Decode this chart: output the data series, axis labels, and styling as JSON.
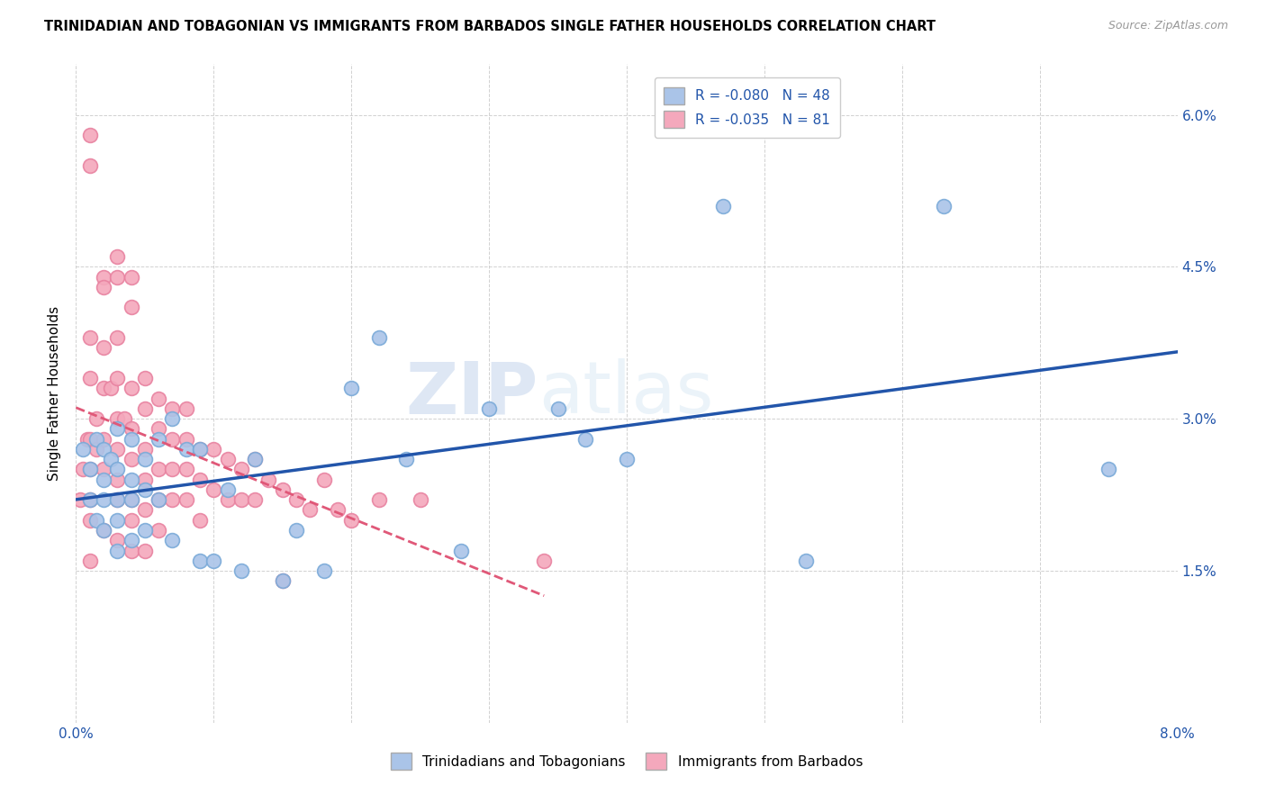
{
  "title": "TRINIDADIAN AND TOBAGONIAN VS IMMIGRANTS FROM BARBADOS SINGLE FATHER HOUSEHOLDS CORRELATION CHART",
  "source": "Source: ZipAtlas.com",
  "xlabel_blue": "Trinidadians and Tobagonians",
  "xlabel_pink": "Immigrants from Barbados",
  "ylabel": "Single Father Households",
  "xlim": [
    0.0,
    0.08
  ],
  "ylim": [
    0.0,
    0.065
  ],
  "xticks": [
    0.0,
    0.01,
    0.02,
    0.03,
    0.04,
    0.05,
    0.06,
    0.07,
    0.08
  ],
  "yticks": [
    0.0,
    0.015,
    0.03,
    0.045,
    0.06
  ],
  "legend_blue_r": "R = -0.080",
  "legend_blue_n": "N = 48",
  "legend_pink_r": "R = -0.035",
  "legend_pink_n": "N = 81",
  "blue_color": "#aac4e8",
  "pink_color": "#f4a8bc",
  "blue_edge_color": "#7aaad8",
  "pink_edge_color": "#e882a0",
  "blue_line_color": "#2255aa",
  "pink_line_color": "#e05878",
  "background_color": "#ffffff",
  "grid_color": "#cccccc",
  "watermark_zip": "ZIP",
  "watermark_atlas": "atlas",
  "blue_x": [
    0.0005,
    0.001,
    0.001,
    0.0015,
    0.0015,
    0.002,
    0.002,
    0.002,
    0.002,
    0.0025,
    0.003,
    0.003,
    0.003,
    0.003,
    0.003,
    0.004,
    0.004,
    0.004,
    0.004,
    0.005,
    0.005,
    0.005,
    0.006,
    0.006,
    0.007,
    0.007,
    0.008,
    0.009,
    0.009,
    0.01,
    0.011,
    0.012,
    0.013,
    0.015,
    0.016,
    0.018,
    0.02,
    0.022,
    0.024,
    0.028,
    0.03,
    0.035,
    0.037,
    0.04,
    0.047,
    0.053,
    0.063,
    0.075
  ],
  "blue_y": [
    0.027,
    0.025,
    0.022,
    0.028,
    0.02,
    0.027,
    0.024,
    0.022,
    0.019,
    0.026,
    0.029,
    0.025,
    0.022,
    0.02,
    0.017,
    0.028,
    0.024,
    0.022,
    0.018,
    0.026,
    0.023,
    0.019,
    0.028,
    0.022,
    0.03,
    0.018,
    0.027,
    0.027,
    0.016,
    0.016,
    0.023,
    0.015,
    0.026,
    0.014,
    0.019,
    0.015,
    0.033,
    0.038,
    0.026,
    0.017,
    0.031,
    0.031,
    0.028,
    0.026,
    0.051,
    0.016,
    0.051,
    0.025
  ],
  "pink_x": [
    0.0003,
    0.0005,
    0.0008,
    0.001,
    0.001,
    0.001,
    0.001,
    0.001,
    0.001,
    0.001,
    0.001,
    0.001,
    0.0015,
    0.0015,
    0.002,
    0.002,
    0.002,
    0.002,
    0.002,
    0.002,
    0.002,
    0.0025,
    0.003,
    0.003,
    0.003,
    0.003,
    0.003,
    0.003,
    0.003,
    0.003,
    0.003,
    0.0035,
    0.004,
    0.004,
    0.004,
    0.004,
    0.004,
    0.004,
    0.004,
    0.004,
    0.005,
    0.005,
    0.005,
    0.005,
    0.005,
    0.005,
    0.006,
    0.006,
    0.006,
    0.006,
    0.006,
    0.007,
    0.007,
    0.007,
    0.007,
    0.008,
    0.008,
    0.008,
    0.008,
    0.009,
    0.009,
    0.009,
    0.01,
    0.01,
    0.011,
    0.011,
    0.012,
    0.012,
    0.013,
    0.013,
    0.014,
    0.015,
    0.015,
    0.016,
    0.017,
    0.018,
    0.019,
    0.02,
    0.022,
    0.025,
    0.034
  ],
  "pink_y": [
    0.022,
    0.025,
    0.028,
    0.058,
    0.055,
    0.038,
    0.034,
    0.028,
    0.025,
    0.022,
    0.02,
    0.016,
    0.03,
    0.027,
    0.044,
    0.043,
    0.037,
    0.033,
    0.028,
    0.025,
    0.019,
    0.033,
    0.046,
    0.044,
    0.038,
    0.034,
    0.03,
    0.027,
    0.024,
    0.022,
    0.018,
    0.03,
    0.044,
    0.041,
    0.033,
    0.029,
    0.026,
    0.022,
    0.02,
    0.017,
    0.034,
    0.031,
    0.027,
    0.024,
    0.021,
    0.017,
    0.032,
    0.029,
    0.025,
    0.022,
    0.019,
    0.031,
    0.028,
    0.025,
    0.022,
    0.031,
    0.028,
    0.025,
    0.022,
    0.027,
    0.024,
    0.02,
    0.027,
    0.023,
    0.026,
    0.022,
    0.025,
    0.022,
    0.026,
    0.022,
    0.024,
    0.023,
    0.014,
    0.022,
    0.021,
    0.024,
    0.021,
    0.02,
    0.022,
    0.022,
    0.016
  ]
}
